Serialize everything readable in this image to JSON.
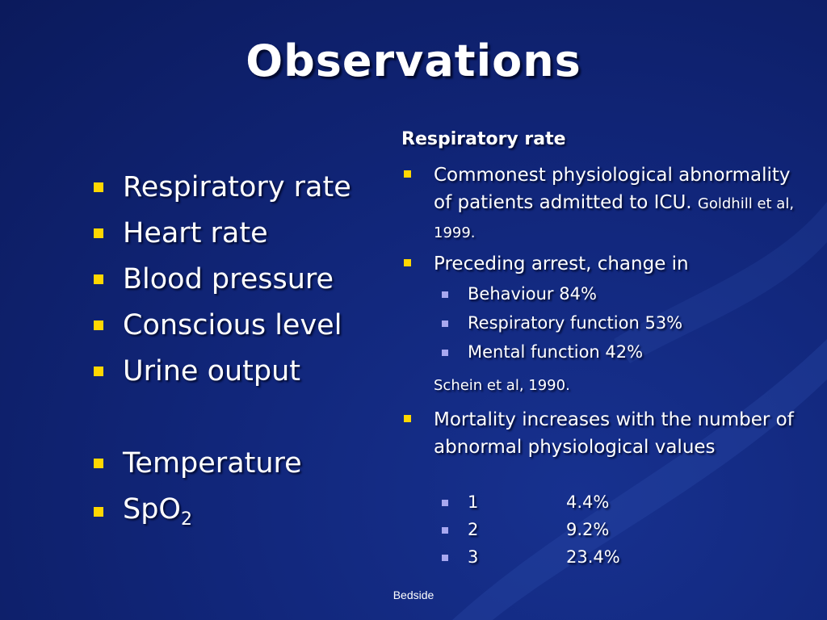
{
  "slide": {
    "title": "Observations",
    "left_items": [
      {
        "label": "Respiratory rate"
      },
      {
        "label": "Heart rate"
      },
      {
        "label": "Blood pressure"
      },
      {
        "label": "Conscious level"
      },
      {
        "label": "Urine output"
      },
      {
        "label": "Temperature"
      },
      {
        "label_main": "SpO",
        "label_sub": "2"
      }
    ],
    "right": {
      "heading": "Respiratory rate",
      "bullet1_text": "Commonest physiological abnormality of patients admitted to ICU.",
      "bullet1_cite": "Goldhill et al, 1999.",
      "bullet2_text": "Preceding arrest, change in",
      "bullet2_subs": [
        "Behaviour 84%",
        "Respiratory function 53%",
        "Mental function 42%"
      ],
      "bullet2_cite": "Schein et al, 1990.",
      "bullet3_text": "Mortality increases with the number of abnormal physiological values",
      "bullet3_rows": [
        {
          "n": "1",
          "pct": "4.4%"
        },
        {
          "n": "2",
          "pct": "9.2%"
        },
        {
          "n": "3",
          "pct": "23.4%"
        }
      ]
    },
    "footer": "Bedside",
    "colors": {
      "bullet": "#ffd700",
      "sub_bullet": "#a8a8f0",
      "background": "#11267a"
    }
  }
}
